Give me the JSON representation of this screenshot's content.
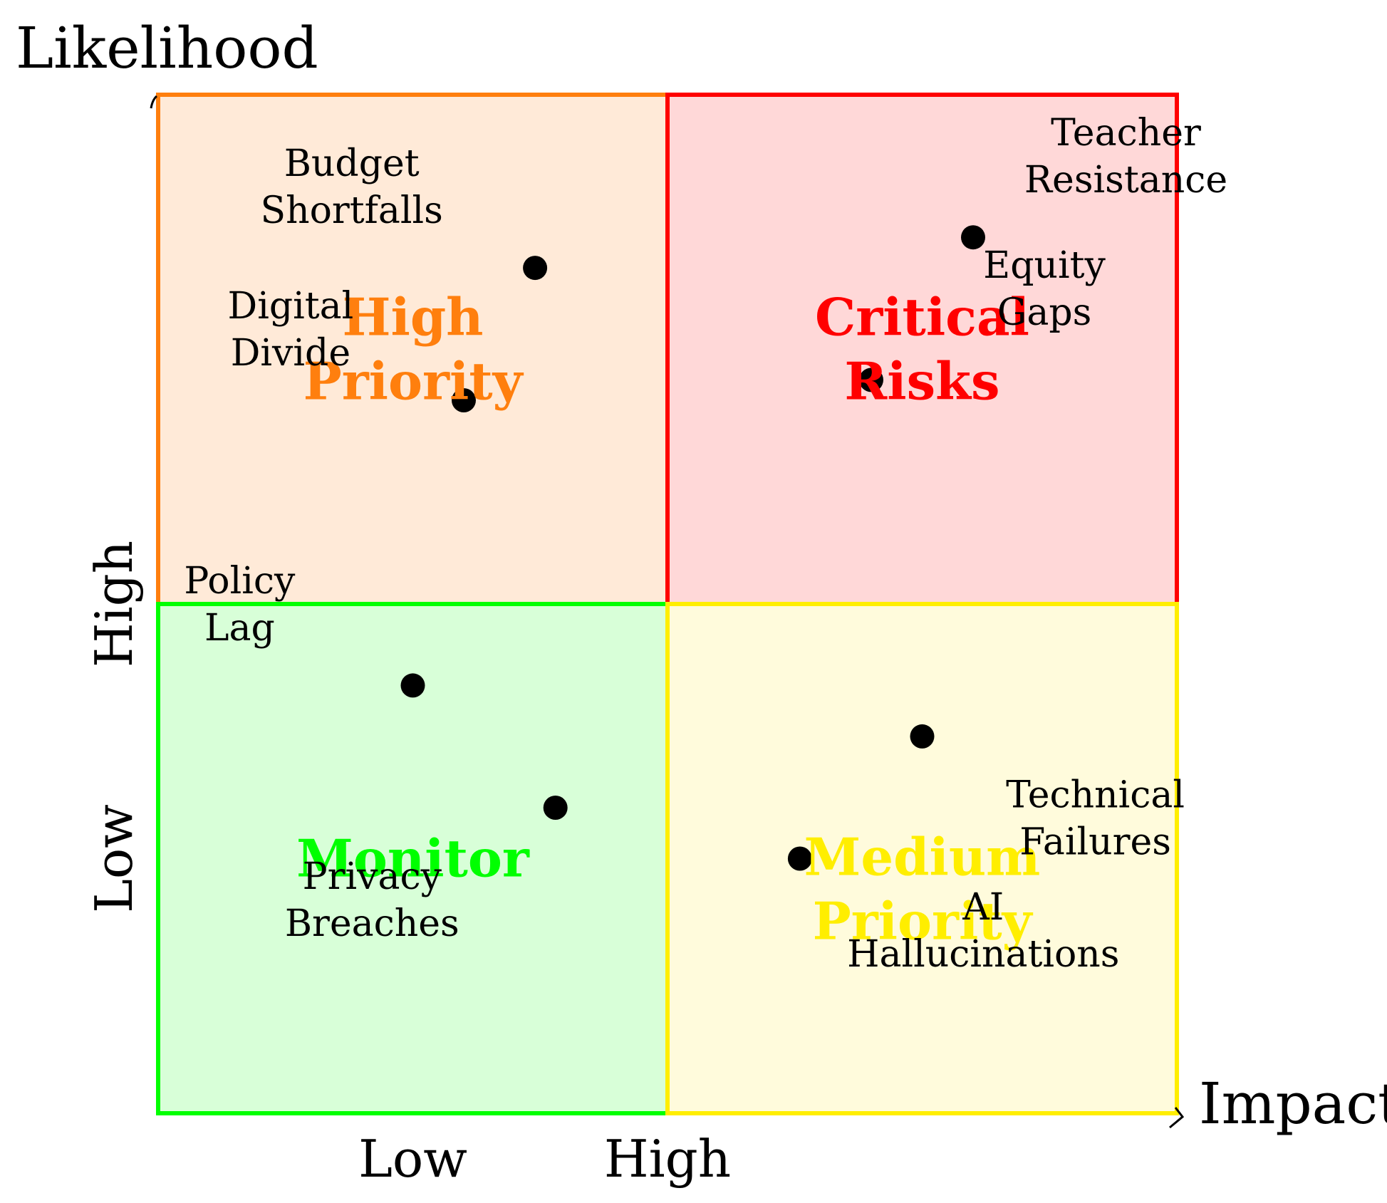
{
  "chart_data": {
    "type": "scatter",
    "title": "",
    "xlabel": "Impact",
    "ylabel": "Likelihood",
    "xlim": [
      0,
      10
    ],
    "ylim": [
      0,
      10
    ],
    "grid": false,
    "x_tick_labels": [
      {
        "label": "Low",
        "value": 2.5
      },
      {
        "label": "High",
        "value": 5
      }
    ],
    "y_tick_labels": [
      {
        "label": "Low",
        "value": 2.5
      },
      {
        "label": "High",
        "value": 5
      }
    ],
    "quadrants": [
      {
        "label_lines": [
          "High",
          "Priority"
        ],
        "x_range": [
          0,
          5
        ],
        "y_range": [
          5,
          10
        ],
        "label_at": [
          2.5,
          7.5
        ],
        "color": "#ff7f0e",
        "fill": "#ffead8"
      },
      {
        "label_lines": [
          "Critical",
          "Risks"
        ],
        "x_range": [
          5,
          10
        ],
        "y_range": [
          5,
          10
        ],
        "label_at": [
          7.5,
          7.5
        ],
        "color": "#ff0000",
        "fill": "#ffd8d8"
      },
      {
        "label_lines": [
          "Monitor"
        ],
        "x_range": [
          0,
          5
        ],
        "y_range": [
          0,
          5
        ],
        "label_at": [
          2.5,
          2.5
        ],
        "color": "#00ff00",
        "fill": "#d8ffd8"
      },
      {
        "label_lines": [
          "Medium",
          "Priority"
        ],
        "x_range": [
          5,
          10
        ],
        "y_range": [
          0,
          5
        ],
        "label_at": [
          7.5,
          2.2
        ],
        "color": "#ffee00",
        "fill": "#fffbdc"
      }
    ],
    "points": [
      {
        "x": 3.7,
        "y": 8.3,
        "label_lines": [
          "Budget",
          "Shortfalls"
        ],
        "label_at": [
          1.9,
          9.1
        ]
      },
      {
        "x": 3.0,
        "y": 7.0,
        "label_lines": [
          "Digital",
          "Divide"
        ],
        "label_at": [
          1.3,
          7.7
        ]
      },
      {
        "x": 8.0,
        "y": 8.6,
        "label_lines": [
          "Teacher",
          "Resistance"
        ],
        "label_at": [
          9.5,
          9.4
        ]
      },
      {
        "x": 7.0,
        "y": 7.2,
        "label_lines": [
          "Equity",
          "Gaps"
        ],
        "label_at": [
          8.7,
          8.1
        ]
      },
      {
        "x": 2.5,
        "y": 4.2,
        "label_lines": [
          "Policy",
          "Lag"
        ],
        "label_at": [
          0.8,
          5.0
        ]
      },
      {
        "x": 3.9,
        "y": 3.0,
        "label_lines": [
          "Privacy",
          "Breaches"
        ],
        "label_at": [
          2.1,
          2.1
        ]
      },
      {
        "x": 7.5,
        "y": 3.7,
        "label_lines": [
          "Technical",
          "Failures"
        ],
        "label_at": [
          9.2,
          2.9
        ]
      },
      {
        "x": 6.3,
        "y": 2.5,
        "label_lines": [
          "AI",
          "Hallucinations"
        ],
        "label_at": [
          8.1,
          1.8
        ]
      }
    ],
    "point_color": "#000000",
    "label_color": "#000000"
  }
}
